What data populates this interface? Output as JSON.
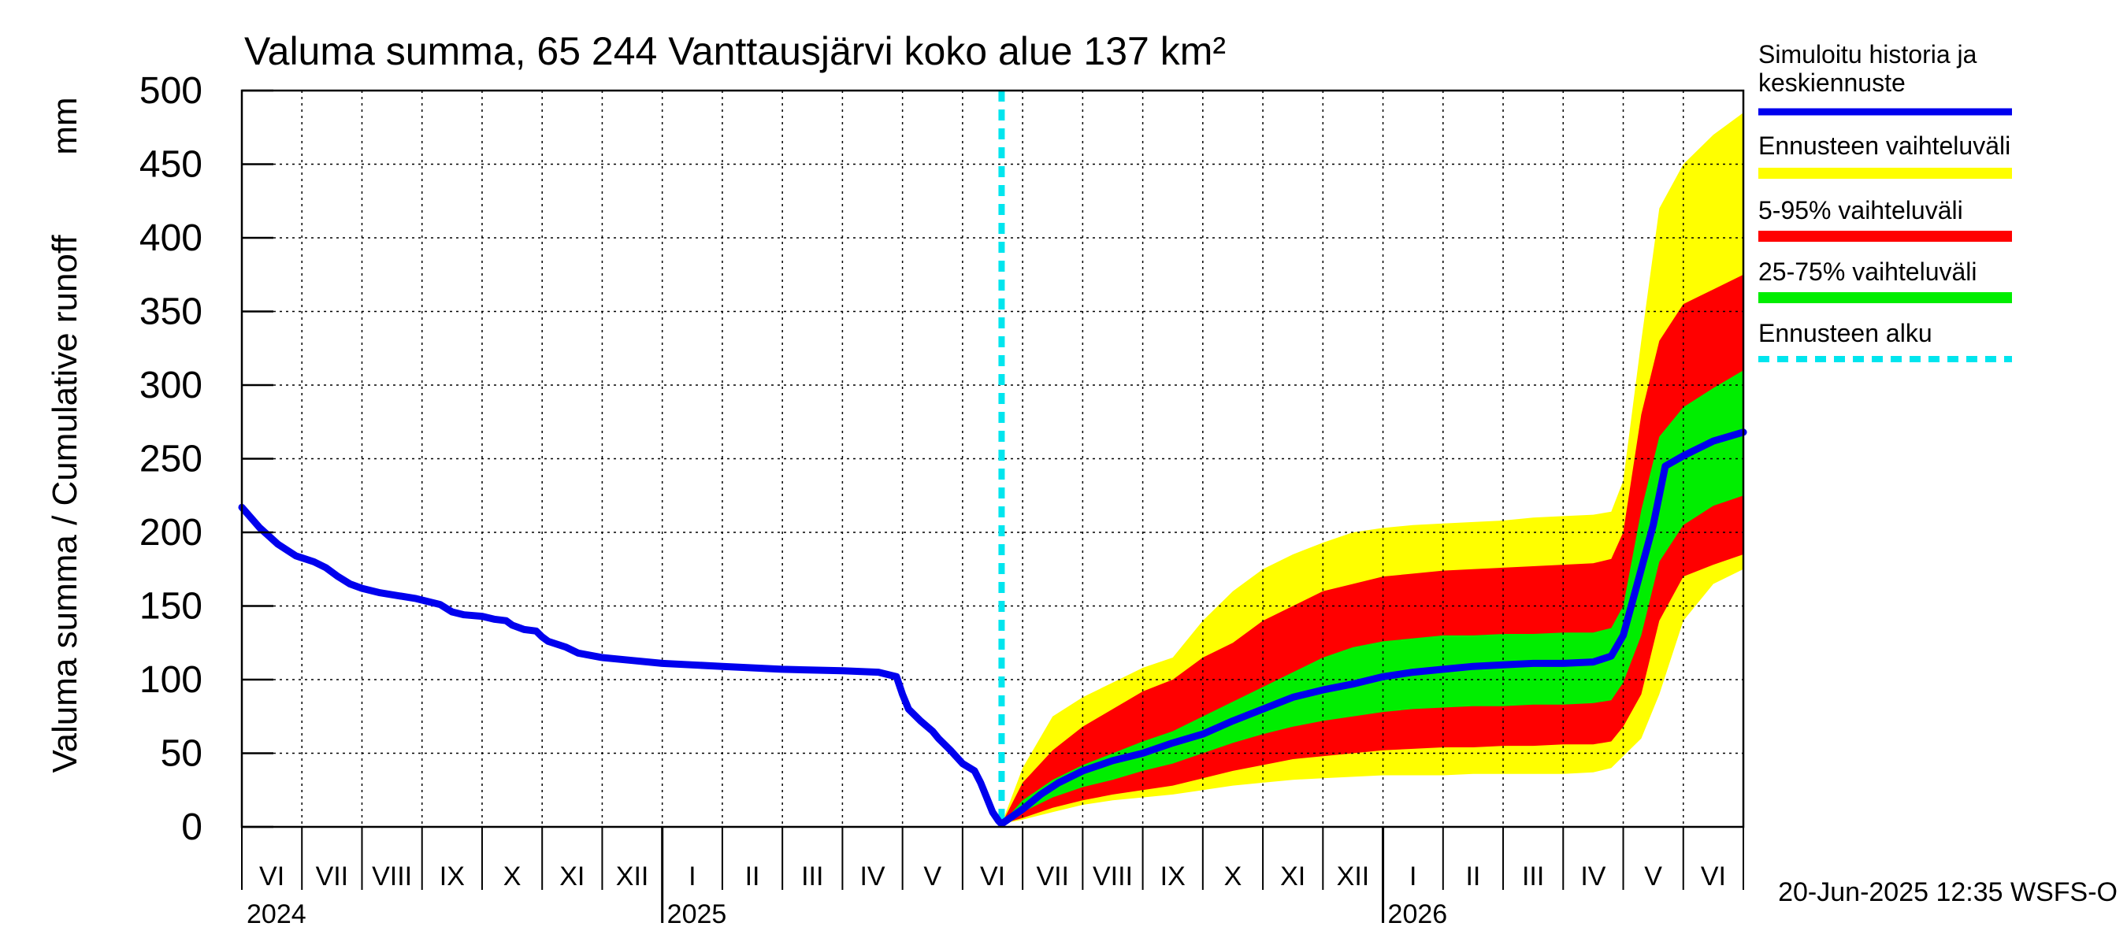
{
  "chart_data": {
    "type": "area",
    "title": "Valuma summa, 65 244 Vanttausjärvi koko alue 137 km²",
    "ylabel_left": "Valuma summa / Cumulative runoff",
    "ylabel_right": "mm",
    "ylim": [
      0,
      500
    ],
    "yticks": [
      "0",
      "50",
      "100",
      "150",
      "200",
      "250",
      "300",
      "350",
      "400",
      "450",
      "500"
    ],
    "grid": true,
    "legend_position": "right",
    "footer": "20-Jun-2025 12:35 WSFS-O",
    "forecast_start": 12.65,
    "x_span_months": 25,
    "month_labels": [
      "VI",
      "VII",
      "VIII",
      "IX",
      "X",
      "XI",
      "XII",
      "I",
      "II",
      "III",
      "IV",
      "V",
      "VI",
      "VII",
      "VIII",
      "IX",
      "X",
      "XI",
      "XII",
      "I",
      "II",
      "III",
      "IV",
      "V",
      "VI"
    ],
    "year_labels": [
      {
        "text": "2024",
        "month_index": 0
      },
      {
        "text": "2025",
        "month_index": 7
      },
      {
        "text": "2026",
        "month_index": 19
      }
    ],
    "legend": [
      {
        "label": "Simuloitu historia ja",
        "label2": "keskiennuste",
        "color": "#0000ee",
        "style": "line"
      },
      {
        "label": "Ennusteen vaihteluväli",
        "color": "#ffff00",
        "style": "band"
      },
      {
        "label": "5-95% vaihteluväli",
        "color": "#ff0000",
        "style": "band"
      },
      {
        "label": "25-75% vaihteluväli",
        "color": "#00ee00",
        "style": "band"
      },
      {
        "label": "Ennusteen alku",
        "color": "#00e5ee",
        "style": "dashed"
      }
    ],
    "colors": {
      "history": "#0000ee",
      "full_range": "#ffff00",
      "p5_95": "#ff0000",
      "p25_75": "#00ee00",
      "forecast_line": "#00e5ee"
    },
    "history": [
      [
        0.0,
        217
      ],
      [
        0.3,
        203
      ],
      [
        0.6,
        192
      ],
      [
        0.9,
        184
      ],
      [
        1.2,
        180
      ],
      [
        1.4,
        176
      ],
      [
        1.6,
        170
      ],
      [
        1.8,
        165
      ],
      [
        2.0,
        162
      ],
      [
        2.3,
        159
      ],
      [
        2.6,
        157
      ],
      [
        2.9,
        155
      ],
      [
        3.1,
        153
      ],
      [
        3.3,
        151
      ],
      [
        3.5,
        146
      ],
      [
        3.7,
        144
      ],
      [
        4.0,
        143
      ],
      [
        4.2,
        141
      ],
      [
        4.4,
        140
      ],
      [
        4.5,
        137
      ],
      [
        4.7,
        134
      ],
      [
        4.9,
        133
      ],
      [
        5.0,
        129
      ],
      [
        5.1,
        126
      ],
      [
        5.4,
        122
      ],
      [
        5.6,
        118
      ],
      [
        6.0,
        115
      ],
      [
        6.5,
        113
      ],
      [
        7.0,
        111
      ],
      [
        8.0,
        109
      ],
      [
        9.0,
        107
      ],
      [
        10.0,
        106
      ],
      [
        10.6,
        105
      ],
      [
        10.9,
        102
      ],
      [
        11.0,
        90
      ],
      [
        11.1,
        80
      ],
      [
        11.3,
        72
      ],
      [
        11.5,
        65
      ],
      [
        11.6,
        60
      ],
      [
        11.8,
        52
      ],
      [
        12.0,
        43
      ],
      [
        12.2,
        38
      ],
      [
        12.3,
        30
      ],
      [
        12.4,
        20
      ],
      [
        12.5,
        10
      ],
      [
        12.6,
        4
      ],
      [
        12.65,
        2
      ]
    ],
    "forecast_median": [
      [
        12.65,
        2
      ],
      [
        13.0,
        12
      ],
      [
        13.3,
        22
      ],
      [
        13.6,
        30
      ],
      [
        14.0,
        38
      ],
      [
        14.5,
        45
      ],
      [
        15.0,
        50
      ],
      [
        15.5,
        57
      ],
      [
        16.0,
        63
      ],
      [
        16.5,
        72
      ],
      [
        17.0,
        80
      ],
      [
        17.5,
        88
      ],
      [
        18.0,
        93
      ],
      [
        18.5,
        97
      ],
      [
        19.0,
        102
      ],
      [
        19.5,
        105
      ],
      [
        20.0,
        107
      ],
      [
        20.5,
        109
      ],
      [
        21.0,
        110
      ],
      [
        21.5,
        111
      ],
      [
        22.0,
        111
      ],
      [
        22.5,
        112
      ],
      [
        22.8,
        116
      ],
      [
        23.0,
        130
      ],
      [
        23.2,
        160
      ],
      [
        23.5,
        205
      ],
      [
        23.7,
        245
      ],
      [
        24.0,
        252
      ],
      [
        24.5,
        262
      ],
      [
        25.0,
        268
      ]
    ],
    "band_x": [
      12.65,
      13.0,
      13.5,
      14.0,
      14.5,
      15.0,
      15.5,
      16.0,
      16.5,
      17.0,
      17.5,
      18.0,
      18.5,
      19.0,
      19.5,
      20.0,
      20.5,
      21.0,
      21.5,
      22.0,
      22.5,
      22.8,
      23.0,
      23.3,
      23.6,
      24.0,
      24.5,
      25.0
    ],
    "full_upper": [
      2,
      40,
      75,
      88,
      98,
      108,
      115,
      140,
      160,
      175,
      185,
      193,
      200,
      203,
      205,
      206,
      207,
      208,
      210,
      211,
      212,
      214,
      235,
      330,
      420,
      450,
      470,
      485
    ],
    "full_lower": [
      2,
      5,
      10,
      15,
      18,
      20,
      22,
      25,
      28,
      30,
      32,
      33,
      34,
      35,
      35,
      35,
      36,
      36,
      36,
      36,
      37,
      40,
      48,
      60,
      90,
      140,
      165,
      175
    ],
    "p5_upper": [
      2,
      30,
      52,
      68,
      80,
      92,
      100,
      115,
      125,
      140,
      150,
      160,
      165,
      170,
      172,
      174,
      175,
      176,
      177,
      178,
      179,
      182,
      200,
      280,
      330,
      355,
      365,
      375
    ],
    "p5_lower": [
      2,
      6,
      13,
      18,
      22,
      25,
      28,
      33,
      38,
      42,
      46,
      48,
      50,
      52,
      53,
      54,
      54,
      55,
      55,
      56,
      56,
      58,
      68,
      90,
      140,
      170,
      178,
      185
    ],
    "p25_upper": [
      2,
      18,
      32,
      42,
      50,
      58,
      65,
      75,
      85,
      95,
      105,
      115,
      122,
      126,
      128,
      130,
      130,
      131,
      131,
      132,
      132,
      135,
      150,
      215,
      265,
      285,
      298,
      310
    ],
    "p25_lower": [
      2,
      10,
      20,
      27,
      32,
      38,
      43,
      50,
      57,
      63,
      68,
      72,
      75,
      78,
      80,
      81,
      82,
      82,
      83,
      83,
      84,
      86,
      98,
      130,
      180,
      205,
      218,
      225
    ]
  }
}
